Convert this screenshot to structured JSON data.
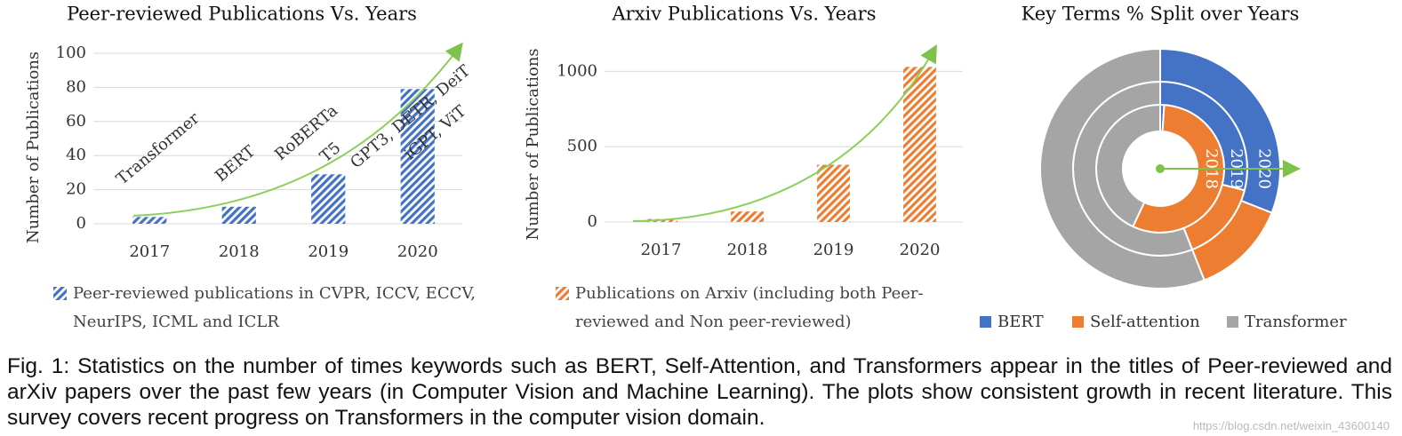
{
  "chart_data": [
    {
      "type": "bar",
      "title": "Peer-reviewed Publications Vs. Years",
      "y_label": "Number of Publications",
      "categories": [
        "2017",
        "2018",
        "2019",
        "2020"
      ],
      "series": [
        {
          "name": "Peer-reviewed publications in CVPR, ICCV, ECCV, NeurIPS, ICML and ICLR",
          "color": "#4472c4",
          "values": [
            4,
            10,
            29,
            79
          ]
        }
      ],
      "annotations": [
        [
          "Transformer"
        ],
        [
          "BERT"
        ],
        [
          "RoBERTa",
          "T5"
        ],
        [
          "GPT3, DETR, DeiT",
          "iGPT, ViT"
        ]
      ],
      "ylim": [
        0,
        100
      ],
      "yticks": [
        0,
        20,
        40,
        60,
        80,
        100
      ],
      "grid": true
    },
    {
      "type": "bar",
      "title": "Arxiv Publications Vs. Years",
      "y_label": "Number of Publications",
      "categories": [
        "2017",
        "2018",
        "2019",
        "2020"
      ],
      "series": [
        {
          "name": "Publications on Arxiv (including both Peer-reviewed and Non peer-reviewed)",
          "color": "#ed7d31",
          "values": [
            20,
            70,
            380,
            1030
          ]
        }
      ],
      "ylim": [
        0,
        1150
      ],
      "yticks": [
        0,
        500,
        1000
      ],
      "grid": true
    },
    {
      "type": "doughnut",
      "title": "Key Terms % Split over Years",
      "categories": [
        "BERT",
        "Self-attention",
        "Transformer"
      ],
      "colors": [
        "#4472c4",
        "#ed7d31",
        "#a5a5a5"
      ],
      "series": [
        {
          "name": "2018",
          "values": [
            1,
            56,
            43
          ]
        },
        {
          "name": "2019",
          "values": [
            29,
            15,
            56
          ]
        },
        {
          "name": "2020",
          "values": [
            31,
            13,
            56
          ]
        }
      ]
    }
  ],
  "caption": "Fig. 1: Statistics on the number of times keywords such as BERT, Self-Attention, and Transformers appear in the titles of Peer-reviewed and arXiv papers over the past few years (in Computer Vision and Machine Learning). The plots show consistent growth in recent literature. This survey covers recent progress on Transformers in the computer vision domain.",
  "watermark": "https://blog.csdn.net/weixin_43600140"
}
